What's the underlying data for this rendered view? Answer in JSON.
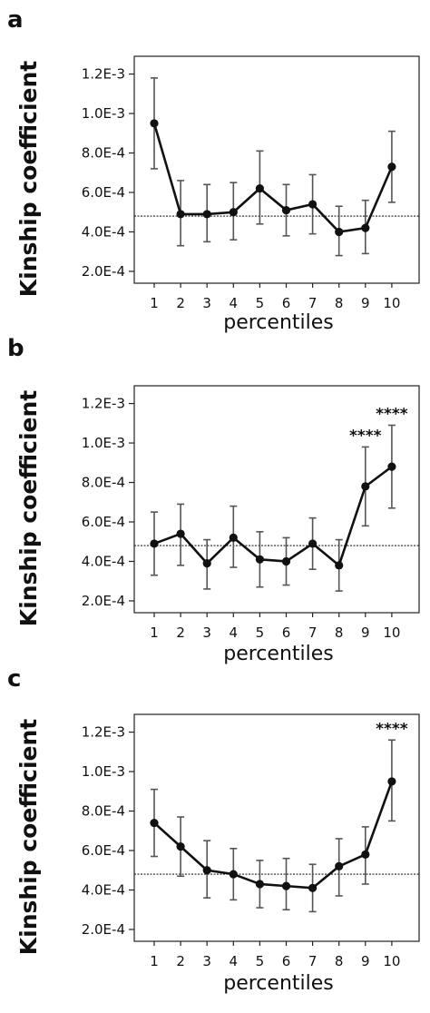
{
  "chart_data": [
    {
      "panel": "a",
      "type": "line",
      "x": [
        1,
        2,
        3,
        4,
        5,
        6,
        7,
        8,
        9,
        10
      ],
      "values": [
        0.00095,
        0.00049,
        0.00049,
        0.0005,
        0.00062,
        0.00051,
        0.00054,
        0.0004,
        0.00042,
        0.00073
      ],
      "error_low": [
        0.00072,
        0.00033,
        0.00035,
        0.00036,
        0.00044,
        0.00038,
        0.00039,
        0.00028,
        0.00029,
        0.00055
      ],
      "error_high": [
        0.00118,
        0.00066,
        0.00064,
        0.00065,
        0.00081,
        0.00064,
        0.00069,
        0.00053,
        0.00056,
        0.00091
      ],
      "reference_line": 0.00048,
      "significance": [
        null,
        null,
        null,
        null,
        null,
        null,
        null,
        null,
        null,
        null
      ],
      "xlabel": "percentiles",
      "ylabel": "Kinship coefficient",
      "xtick_labels": [
        "1",
        "2",
        "3",
        "4",
        "5",
        "6",
        "7",
        "8",
        "9",
        "10"
      ],
      "ytick_values": [
        0.0002,
        0.0004,
        0.0006,
        0.0008,
        0.001,
        0.0012
      ],
      "ytick_labels": [
        "2.0E-4",
        "4.0E-4",
        "6.0E-4",
        "8.0E-4",
        "1.0E-3",
        "1.2E-3"
      ],
      "ylim": [
        0.00014,
        0.00129
      ]
    },
    {
      "panel": "b",
      "type": "line",
      "x": [
        1,
        2,
        3,
        4,
        5,
        6,
        7,
        8,
        9,
        10
      ],
      "values": [
        0.00049,
        0.00054,
        0.00039,
        0.00052,
        0.00041,
        0.0004,
        0.00049,
        0.00038,
        0.00078,
        0.00088
      ],
      "error_low": [
        0.00033,
        0.00038,
        0.00026,
        0.00037,
        0.00027,
        0.00028,
        0.00036,
        0.00025,
        0.00058,
        0.00067
      ],
      "error_high": [
        0.00065,
        0.00069,
        0.00051,
        0.00068,
        0.00055,
        0.00052,
        0.00062,
        0.00051,
        0.00098,
        0.00109
      ],
      "reference_line": 0.00048,
      "significance": [
        null,
        null,
        null,
        null,
        null,
        null,
        null,
        null,
        "****",
        "****"
      ],
      "xlabel": "percentiles",
      "ylabel": "Kinship coefficient",
      "xtick_labels": [
        "1",
        "2",
        "3",
        "4",
        "5",
        "6",
        "7",
        "8",
        "9",
        "10"
      ],
      "ytick_values": [
        0.0002,
        0.0004,
        0.0006,
        0.0008,
        0.001,
        0.0012
      ],
      "ytick_labels": [
        "2.0E-4",
        "4.0E-4",
        "6.0E-4",
        "8.0E-4",
        "1.0E-3",
        "1.2E-3"
      ],
      "ylim": [
        0.00014,
        0.00129
      ]
    },
    {
      "panel": "c",
      "type": "line",
      "x": [
        1,
        2,
        3,
        4,
        5,
        6,
        7,
        8,
        9,
        10
      ],
      "values": [
        0.00074,
        0.00062,
        0.0005,
        0.00048,
        0.00043,
        0.00042,
        0.00041,
        0.00052,
        0.00058,
        0.00095
      ],
      "error_low": [
        0.00057,
        0.00047,
        0.00036,
        0.00035,
        0.00031,
        0.0003,
        0.00029,
        0.00037,
        0.00043,
        0.00075
      ],
      "error_high": [
        0.00091,
        0.00077,
        0.00065,
        0.00061,
        0.00055,
        0.00056,
        0.00053,
        0.00066,
        0.00072,
        0.00116
      ],
      "reference_line": 0.00048,
      "significance": [
        null,
        null,
        null,
        null,
        null,
        null,
        null,
        null,
        null,
        "****"
      ],
      "xlabel": "percentiles",
      "ylabel": "Kinship coefficient",
      "xtick_labels": [
        "1",
        "2",
        "3",
        "4",
        "5",
        "6",
        "7",
        "8",
        "9",
        "10"
      ],
      "ytick_values": [
        0.0002,
        0.0004,
        0.0006,
        0.0008,
        0.001,
        0.0012
      ],
      "ytick_labels": [
        "2.0E-4",
        "4.0E-4",
        "6.0E-4",
        "8.0E-4",
        "1.0E-3",
        "1.2E-3"
      ],
      "ylim": [
        0.00014,
        0.00129
      ]
    }
  ]
}
